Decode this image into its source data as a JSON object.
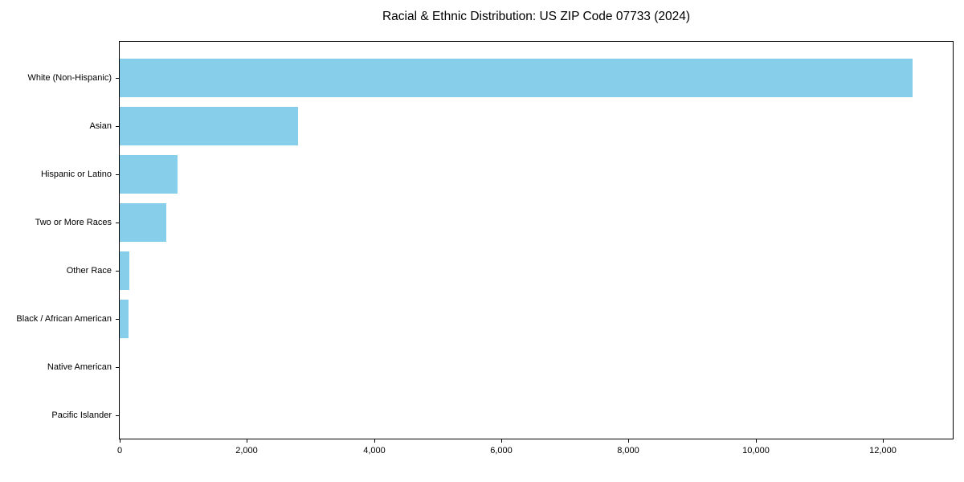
{
  "chart_data": {
    "type": "bar",
    "orientation": "horizontal",
    "title": "Racial & Ethnic Distribution: US ZIP Code 07733 (2024)",
    "xlabel": "",
    "ylabel": "",
    "categories": [
      "White (Non-Hispanic)",
      "Asian",
      "Hispanic or Latino",
      "Two or More Races",
      "Other Race",
      "Black / African American",
      "Native American",
      "Pacific Islander"
    ],
    "values": [
      12470,
      2810,
      910,
      730,
      150,
      140,
      0,
      0
    ],
    "xlim": [
      0,
      13100
    ],
    "x_ticks": [
      0,
      2000,
      4000,
      6000,
      8000,
      10000,
      12000
    ],
    "x_tick_labels": [
      "0",
      "2,000",
      "4,000",
      "6,000",
      "8,000",
      "10,000",
      "12,000"
    ],
    "bar_color": "#87CEEB",
    "frame_color": "#000000",
    "text_color": "#000000",
    "grid": false,
    "legend": false,
    "category_order": "largest_at_top"
  }
}
